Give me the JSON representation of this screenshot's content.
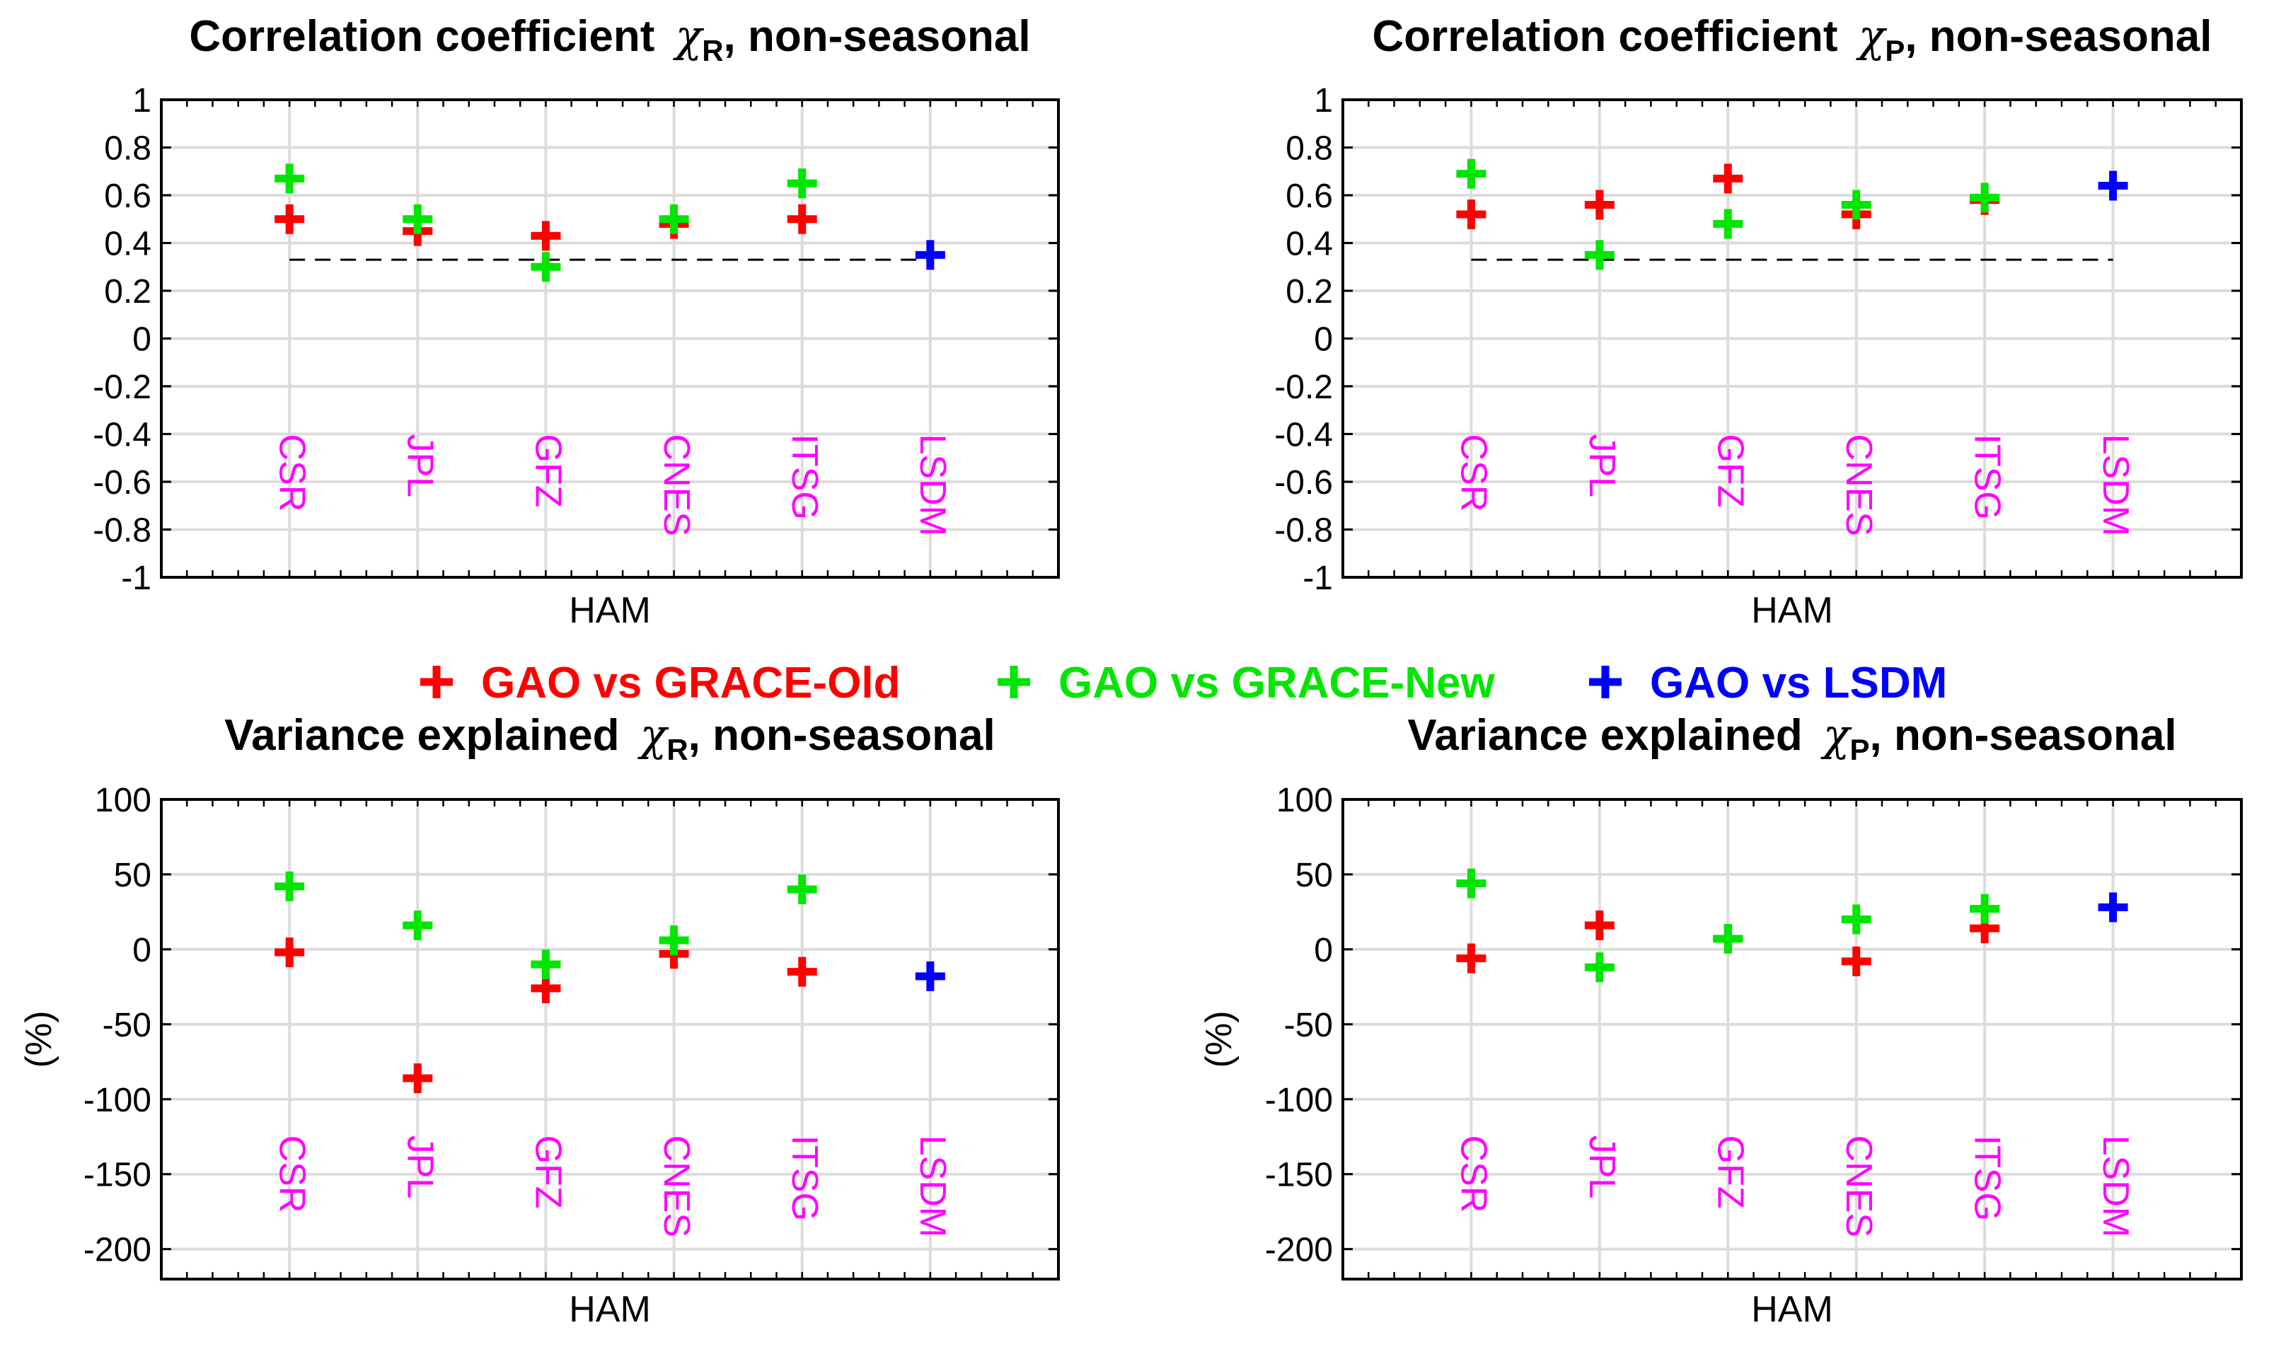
{
  "colors": {
    "old": "#ff0000",
    "new": "#00e600",
    "lsdm": "#0000ff",
    "category": "#ff00ff",
    "grid": "#dcdcdc"
  },
  "legend": [
    {
      "label": "GAO vs GRACE-Old",
      "color_key": "old"
    },
    {
      "label": "GAO vs GRACE-New",
      "color_key": "new"
    },
    {
      "label": "GAO vs LSDM",
      "color_key": "lsdm"
    }
  ],
  "chart_data": [
    {
      "type": "scatter",
      "title_parts": [
        "Correlation coefficient",
        "χ",
        "R",
        ", non-seasonal"
      ],
      "xlabel": "HAM",
      "ylabel": "",
      "categories": [
        "CSR",
        "JPL",
        "GFZ",
        "CNES",
        "ITSG",
        "LSDM"
      ],
      "ylim": [
        -1,
        1
      ],
      "yticks": [
        1,
        0.8,
        0.6,
        0.4,
        0.2,
        0,
        -0.2,
        -0.4,
        -0.6,
        -0.8,
        -1
      ],
      "ytick_labels": [
        "1",
        "0.8",
        "0.6",
        "0.4",
        "0.2",
        "0",
        "-0.2",
        "-0.4",
        "-0.6",
        "-0.8",
        "-1"
      ],
      "significance_line": 0.33,
      "series": [
        {
          "name": "GAO vs GRACE-Old",
          "color_key": "old",
          "values": [
            0.5,
            0.45,
            0.43,
            0.48,
            0.5,
            null
          ]
        },
        {
          "name": "GAO vs GRACE-New",
          "color_key": "new",
          "values": [
            0.67,
            0.5,
            0.3,
            0.5,
            0.65,
            null
          ]
        },
        {
          "name": "GAO vs LSDM",
          "color_key": "lsdm",
          "values": [
            null,
            null,
            null,
            null,
            null,
            0.35
          ]
        }
      ]
    },
    {
      "type": "scatter",
      "title_parts": [
        "Correlation coefficient",
        "χ",
        "P",
        ", non-seasonal"
      ],
      "xlabel": "HAM",
      "ylabel": "",
      "categories": [
        "CSR",
        "JPL",
        "GFZ",
        "CNES",
        "ITSG",
        "LSDM"
      ],
      "ylim": [
        -1,
        1
      ],
      "yticks": [
        1,
        0.8,
        0.6,
        0.4,
        0.2,
        0,
        -0.2,
        -0.4,
        -0.6,
        -0.8,
        -1
      ],
      "ytick_labels": [
        "1",
        "0.8",
        "0.6",
        "0.4",
        "0.2",
        "0",
        "-0.2",
        "-0.4",
        "-0.6",
        "-0.8",
        "-1"
      ],
      "significance_line": 0.33,
      "series": [
        {
          "name": "GAO vs GRACE-Old",
          "color_key": "old",
          "values": [
            0.52,
            0.56,
            0.67,
            0.52,
            0.58,
            null
          ]
        },
        {
          "name": "GAO vs GRACE-New",
          "color_key": "new",
          "values": [
            0.69,
            0.35,
            0.48,
            0.56,
            0.59,
            null
          ]
        },
        {
          "name": "GAO vs LSDM",
          "color_key": "lsdm",
          "values": [
            null,
            null,
            null,
            null,
            null,
            0.64
          ]
        }
      ]
    },
    {
      "type": "scatter",
      "title_parts": [
        "Variance explained ",
        "χ",
        "R",
        ", non-seasonal"
      ],
      "xlabel": "HAM",
      "ylabel": "(%)",
      "categories": [
        "CSR",
        "JPL",
        "GFZ",
        "CNES",
        "ITSG",
        "LSDM"
      ],
      "ylim": [
        -220,
        100
      ],
      "yticks": [
        100,
        50,
        0,
        -50,
        -100,
        -150,
        -200
      ],
      "ytick_labels": [
        "100",
        "50",
        "0",
        "-50",
        "-100",
        "-150",
        "-200"
      ],
      "series": [
        {
          "name": "GAO vs GRACE-Old",
          "color_key": "old",
          "values": [
            -2,
            -86,
            -26,
            -3,
            -15,
            null
          ]
        },
        {
          "name": "GAO vs GRACE-New",
          "color_key": "new",
          "values": [
            42,
            16,
            -10,
            6,
            40,
            null
          ]
        },
        {
          "name": "GAO vs LSDM",
          "color_key": "lsdm",
          "values": [
            null,
            null,
            null,
            null,
            null,
            -18
          ]
        }
      ]
    },
    {
      "type": "scatter",
      "title_parts": [
        "Variance explained ",
        "χ",
        "P",
        ", non-seasonal"
      ],
      "xlabel": "HAM",
      "ylabel": "(%)",
      "categories": [
        "CSR",
        "JPL",
        "GFZ",
        "CNES",
        "ITSG",
        "LSDM"
      ],
      "ylim": [
        -220,
        100
      ],
      "yticks": [
        100,
        50,
        0,
        -50,
        -100,
        -150,
        -200
      ],
      "ytick_labels": [
        "100",
        "50",
        "0",
        "-50",
        "-100",
        "-150",
        "-200"
      ],
      "series": [
        {
          "name": "GAO vs GRACE-Old",
          "color_key": "old",
          "values": [
            -6,
            16,
            7,
            -8,
            14,
            null
          ]
        },
        {
          "name": "GAO vs GRACE-New",
          "color_key": "new",
          "values": [
            44,
            -12,
            7,
            20,
            27,
            null
          ]
        },
        {
          "name": "GAO vs LSDM",
          "color_key": "lsdm",
          "values": [
            null,
            null,
            null,
            null,
            null,
            28
          ]
        }
      ]
    }
  ]
}
